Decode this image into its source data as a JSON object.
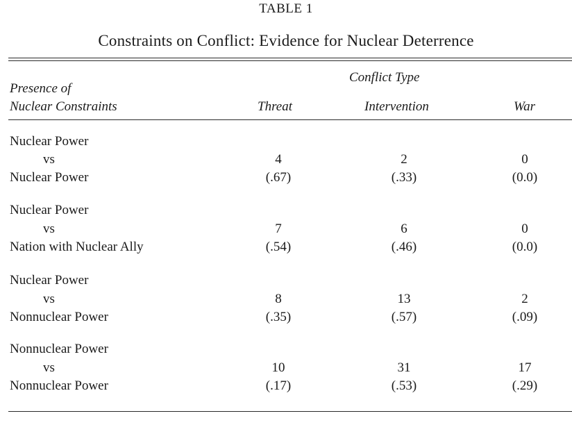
{
  "table": {
    "number": "TABLE 1",
    "title": "Constraints on Conflict: Evidence for Nuclear Deterrence",
    "row_header_line1": "Presence of",
    "row_header_line2": "Nuclear Constraints",
    "group_header": "Conflict Type",
    "columns": [
      "Threat",
      "Intervention",
      "War"
    ],
    "groups": [
      {
        "line1": "Nuclear Power",
        "vs": "vs",
        "line3": "Nuclear Power",
        "counts": [
          "4",
          "2",
          "0"
        ],
        "proportions": [
          "(.67)",
          "(.33)",
          "(0.0)"
        ]
      },
      {
        "line1": "Nuclear Power",
        "vs": "vs",
        "line3": "Nation with Nuclear Ally",
        "counts": [
          "7",
          "6",
          "0"
        ],
        "proportions": [
          "(.54)",
          "(.46)",
          "(0.0)"
        ]
      },
      {
        "line1": "Nuclear Power",
        "vs": "vs",
        "line3": "Nonnuclear Power",
        "counts": [
          "8",
          "13",
          "2"
        ],
        "proportions": [
          "(.35)",
          "(.57)",
          "(.09)"
        ]
      },
      {
        "line1": "Nonnuclear Power",
        "vs": "vs",
        "line3": "Nonnuclear Power",
        "counts": [
          "10",
          "31",
          "17"
        ],
        "proportions": [
          "(.17)",
          "(.53)",
          "(.29)"
        ]
      }
    ]
  }
}
